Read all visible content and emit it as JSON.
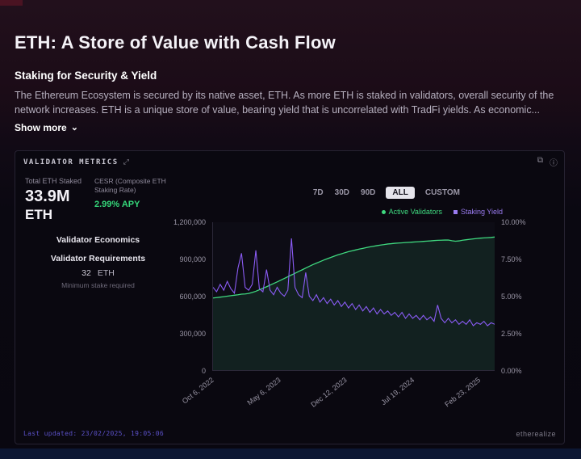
{
  "page": {
    "title": "ETH: A Store of Value with Cash Flow",
    "subtitle": "Staking for Security & Yield",
    "body": "The Ethereum Ecosystem is secured by its native asset, ETH. As more ETH is staked in validators, overall security of the network increases. ETH is a unique store of value, bearing yield that is uncorrelated with TradFi yields. As economic...",
    "show_more_label": "Show more"
  },
  "panel": {
    "title": "VALIDATOR METRICS",
    "stats": {
      "total_label": "Total ETH Staked",
      "total_value": "33.9M",
      "total_unit": "ETH",
      "cesr_label": "CESR (Composite ETH Staking Rate)",
      "cesr_value": "2.99% APY",
      "economics_heading": "Validator Economics",
      "requirements_heading": "Validator Requirements",
      "requirement_value": "32",
      "requirement_unit": "ETH",
      "requirement_note": "Minimum stake required"
    },
    "ranges": [
      "7D",
      "30D",
      "90D",
      "ALL",
      "CUSTOM"
    ],
    "active_range": "ALL",
    "legend": [
      {
        "label": "Active Validators",
        "color": "#3fd97f"
      },
      {
        "label": "Staking Yield",
        "color": "#9a7bf0"
      }
    ],
    "footer": {
      "last_updated": "Last updated: 23/02/2025, 19:05:06",
      "brand": "etherealize"
    }
  },
  "chart_data": {
    "type": "line",
    "title": "Validator Metrics",
    "grid": false,
    "legend_position": "top-right",
    "x_labels": [
      "Oct 6, 2022",
      "May 6, 2023",
      "Dec 12, 2023",
      "Jul 19, 2024",
      "Feb 23, 2025"
    ],
    "left_axis": {
      "name": "Active Validators",
      "min": 0,
      "max": 1200000,
      "ticks": [
        "1,200,000",
        "900,000",
        "600,000",
        "300,000",
        "0"
      ]
    },
    "right_axis": {
      "name": "Staking Yield",
      "min": 0,
      "max": 10,
      "ticks": [
        "10.00%",
        "7.50%",
        "5.00%",
        "2.50%",
        "0.00%"
      ]
    },
    "series": [
      {
        "name": "Active Validators",
        "axis": "left",
        "color": "#3fd97f",
        "values": [
          585000,
          588000,
          592000,
          596000,
          600000,
          604000,
          608000,
          612000,
          616000,
          618000,
          622000,
          630000,
          640000,
          652000,
          664000,
          676000,
          690000,
          703000,
          716000,
          730000,
          744000,
          758000,
          772000,
          786000,
          800000,
          814000,
          828000,
          842000,
          856000,
          868000,
          880000,
          892000,
          903000,
          914000,
          925000,
          935000,
          944000,
          953000,
          961000,
          968000,
          975000,
          982000,
          988000,
          994000,
          1000000,
          1005000,
          1010000,
          1015000,
          1019000,
          1023000,
          1026000,
          1029000,
          1031000,
          1033000,
          1035000,
          1037000,
          1039000,
          1041000,
          1043000,
          1045000,
          1047000,
          1049000,
          1051000,
          1053000,
          1054000,
          1055000,
          1056000,
          1050000,
          1046000,
          1049000,
          1054000,
          1058000,
          1062000,
          1065000,
          1068000,
          1071000,
          1073000,
          1075000,
          1077000,
          1080000
        ]
      },
      {
        "name": "Staking Yield",
        "axis": "right",
        "color": "#8b5cf6",
        "values": [
          5.6,
          5.3,
          5.8,
          5.4,
          6.0,
          5.5,
          5.2,
          6.9,
          7.9,
          5.6,
          5.4,
          5.8,
          8.1,
          5.5,
          5.3,
          6.8,
          5.4,
          5.1,
          5.6,
          5.2,
          5.0,
          5.4,
          8.9,
          5.6,
          5.1,
          4.9,
          6.6,
          5.0,
          4.7,
          5.1,
          4.6,
          4.9,
          4.5,
          4.8,
          4.4,
          4.7,
          4.3,
          4.6,
          4.2,
          4.5,
          4.1,
          4.4,
          4.0,
          4.3,
          3.9,
          4.2,
          3.8,
          4.1,
          3.8,
          4.0,
          3.7,
          3.9,
          3.6,
          3.9,
          3.5,
          3.8,
          3.5,
          3.7,
          3.4,
          3.7,
          3.4,
          3.6,
          3.3,
          4.4,
          3.5,
          3.2,
          3.5,
          3.2,
          3.4,
          3.1,
          3.3,
          3.1,
          3.4,
          3.0,
          3.2,
          3.1,
          3.3,
          3.0,
          3.2,
          3.1
        ]
      }
    ]
  },
  "colors": {
    "accent_green": "#3fd97f",
    "accent_purple": "#8b5cf6",
    "panel_bg": "#0a0810"
  }
}
